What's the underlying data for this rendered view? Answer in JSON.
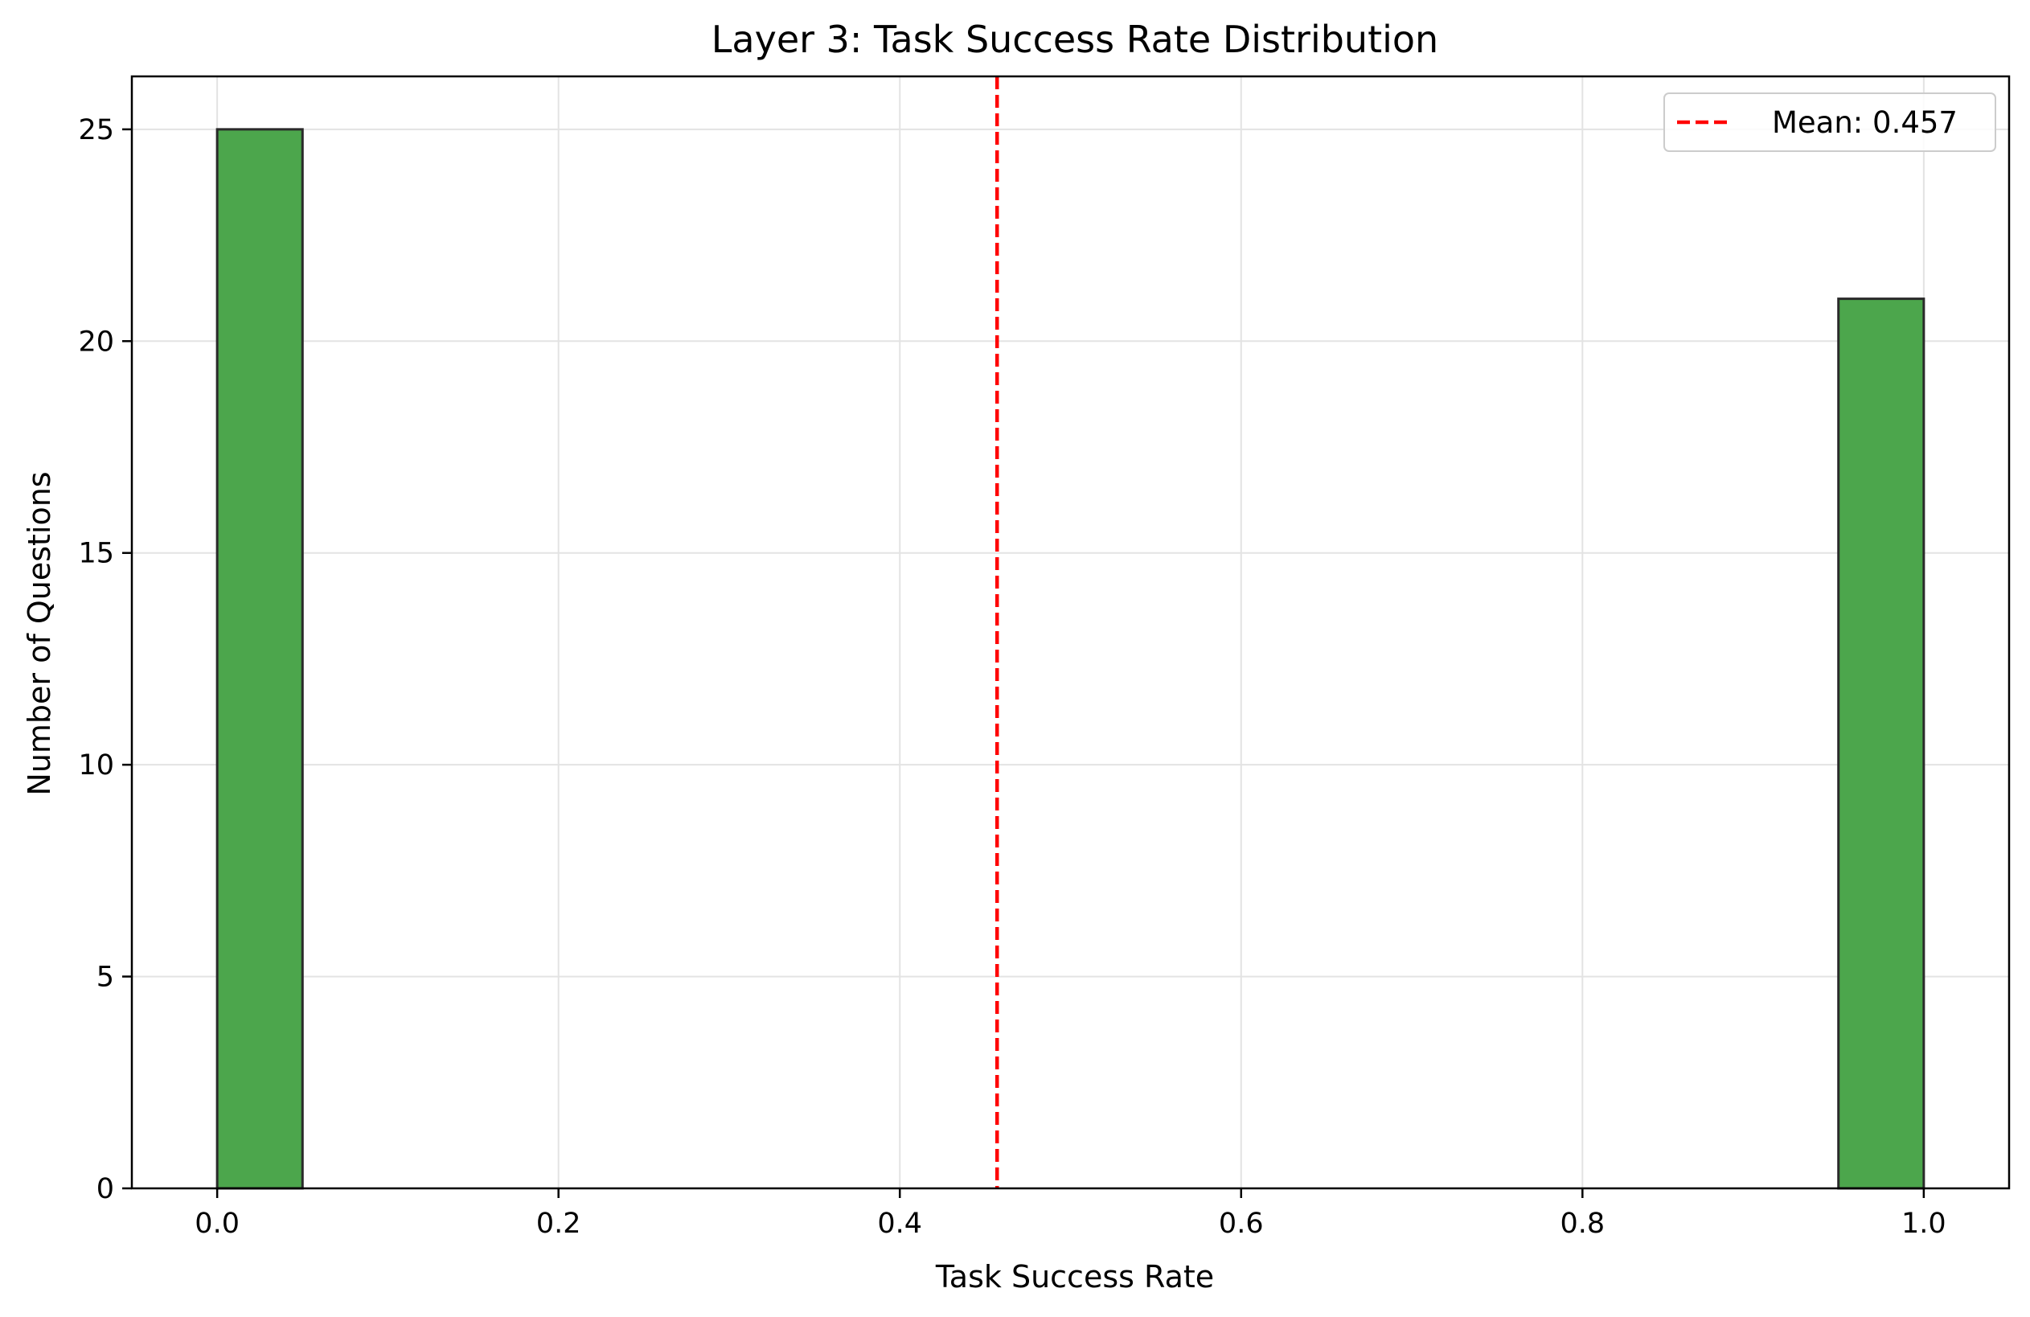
{
  "chart_data": {
    "type": "bar",
    "title": "Layer 3: Task Success Rate Distribution",
    "xlabel": "Task Success Rate",
    "ylabel": "Number of Questions",
    "xlim": [
      -0.05,
      1.05
    ],
    "ylim": [
      0,
      26.25
    ],
    "x_ticks": [
      0.0,
      0.2,
      0.4,
      0.6,
      0.8,
      1.0
    ],
    "x_tick_labels": [
      "0.0",
      "0.2",
      "0.4",
      "0.6",
      "0.8",
      "1.0"
    ],
    "y_ticks": [
      0,
      5,
      10,
      15,
      20,
      25
    ],
    "y_tick_labels": [
      "0",
      "5",
      "10",
      "15",
      "20",
      "25"
    ],
    "bins": [
      {
        "start": 0.0,
        "end": 0.05,
        "count": 25
      },
      {
        "start": 0.95,
        "end": 1.0,
        "count": 21
      }
    ],
    "mean_line": {
      "x": 0.457,
      "label": "Mean: 0.457",
      "color": "#ff0000"
    },
    "bar_color": "#4ca64c",
    "grid": true,
    "legend_position": "top-right"
  }
}
